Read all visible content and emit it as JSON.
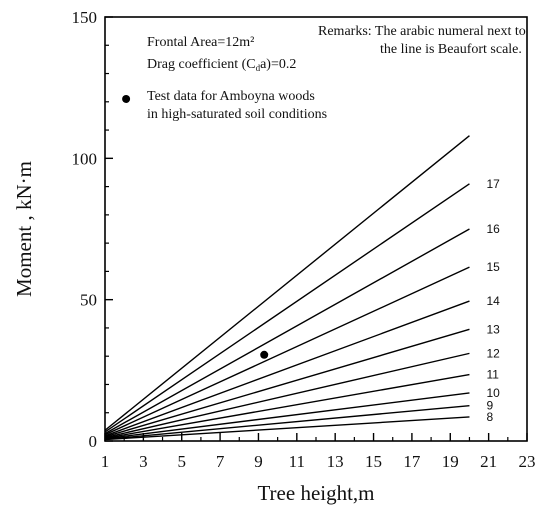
{
  "chart_data": {
    "type": "line",
    "xlabel": "Tree height,m",
    "ylabel": "Moment , kN·m",
    "xlim": [
      1,
      23
    ],
    "ylim": [
      0,
      150
    ],
    "xticks": [
      1,
      3,
      5,
      7,
      9,
      11,
      13,
      15,
      17,
      19,
      21,
      23
    ],
    "yticks": [
      0,
      50,
      100,
      150
    ],
    "series": [
      {
        "name": "8",
        "x": [
          1,
          20
        ],
        "y": [
          0.5,
          8.5
        ]
      },
      {
        "name": "9",
        "x": [
          1,
          20
        ],
        "y": [
          0.6,
          12.5
        ]
      },
      {
        "name": "10",
        "x": [
          1,
          20
        ],
        "y": [
          0.8,
          17
        ]
      },
      {
        "name": "11",
        "x": [
          1,
          20
        ],
        "y": [
          1.0,
          23.5
        ]
      },
      {
        "name": "12",
        "x": [
          1,
          20
        ],
        "y": [
          1.2,
          31
        ]
      },
      {
        "name": "13",
        "x": [
          1,
          20
        ],
        "y": [
          1.5,
          39.5
        ]
      },
      {
        "name": "14",
        "x": [
          1,
          20
        ],
        "y": [
          1.8,
          49.5
        ]
      },
      {
        "name": "15",
        "x": [
          1,
          20
        ],
        "y": [
          2.2,
          61.5
        ]
      },
      {
        "name": "16",
        "x": [
          1,
          20
        ],
        "y": [
          2.6,
          75
        ]
      },
      {
        "name": "17",
        "x": [
          1,
          20
        ],
        "y": [
          3.2,
          91
        ]
      },
      {
        "name": "",
        "x": [
          1,
          20
        ],
        "y": [
          3.8,
          108
        ]
      }
    ],
    "points": [
      {
        "name": "Test data for Amboyna woods in high-saturated soil conditions",
        "x": 9.3,
        "y": 30.5
      }
    ],
    "legend_marker": {
      "x": 2.1,
      "y": 121
    }
  },
  "annotations": {
    "frontal_area": "Frontal Area=12m²",
    "drag_prefix": "Drag coefficient (C",
    "drag_sub": "d",
    "drag_suffix": "a)=0.2",
    "test_data_line1": "Test data for Amboyna woods",
    "test_data_line2": "in high-saturated soil conditions",
    "remarks_line1": "Remarks: The arabic numeral next to",
    "remarks_line2": "the line is Beaufort scale."
  },
  "colors": {
    "line": "#000000",
    "axis": "#000000",
    "background": "#ffffff"
  }
}
